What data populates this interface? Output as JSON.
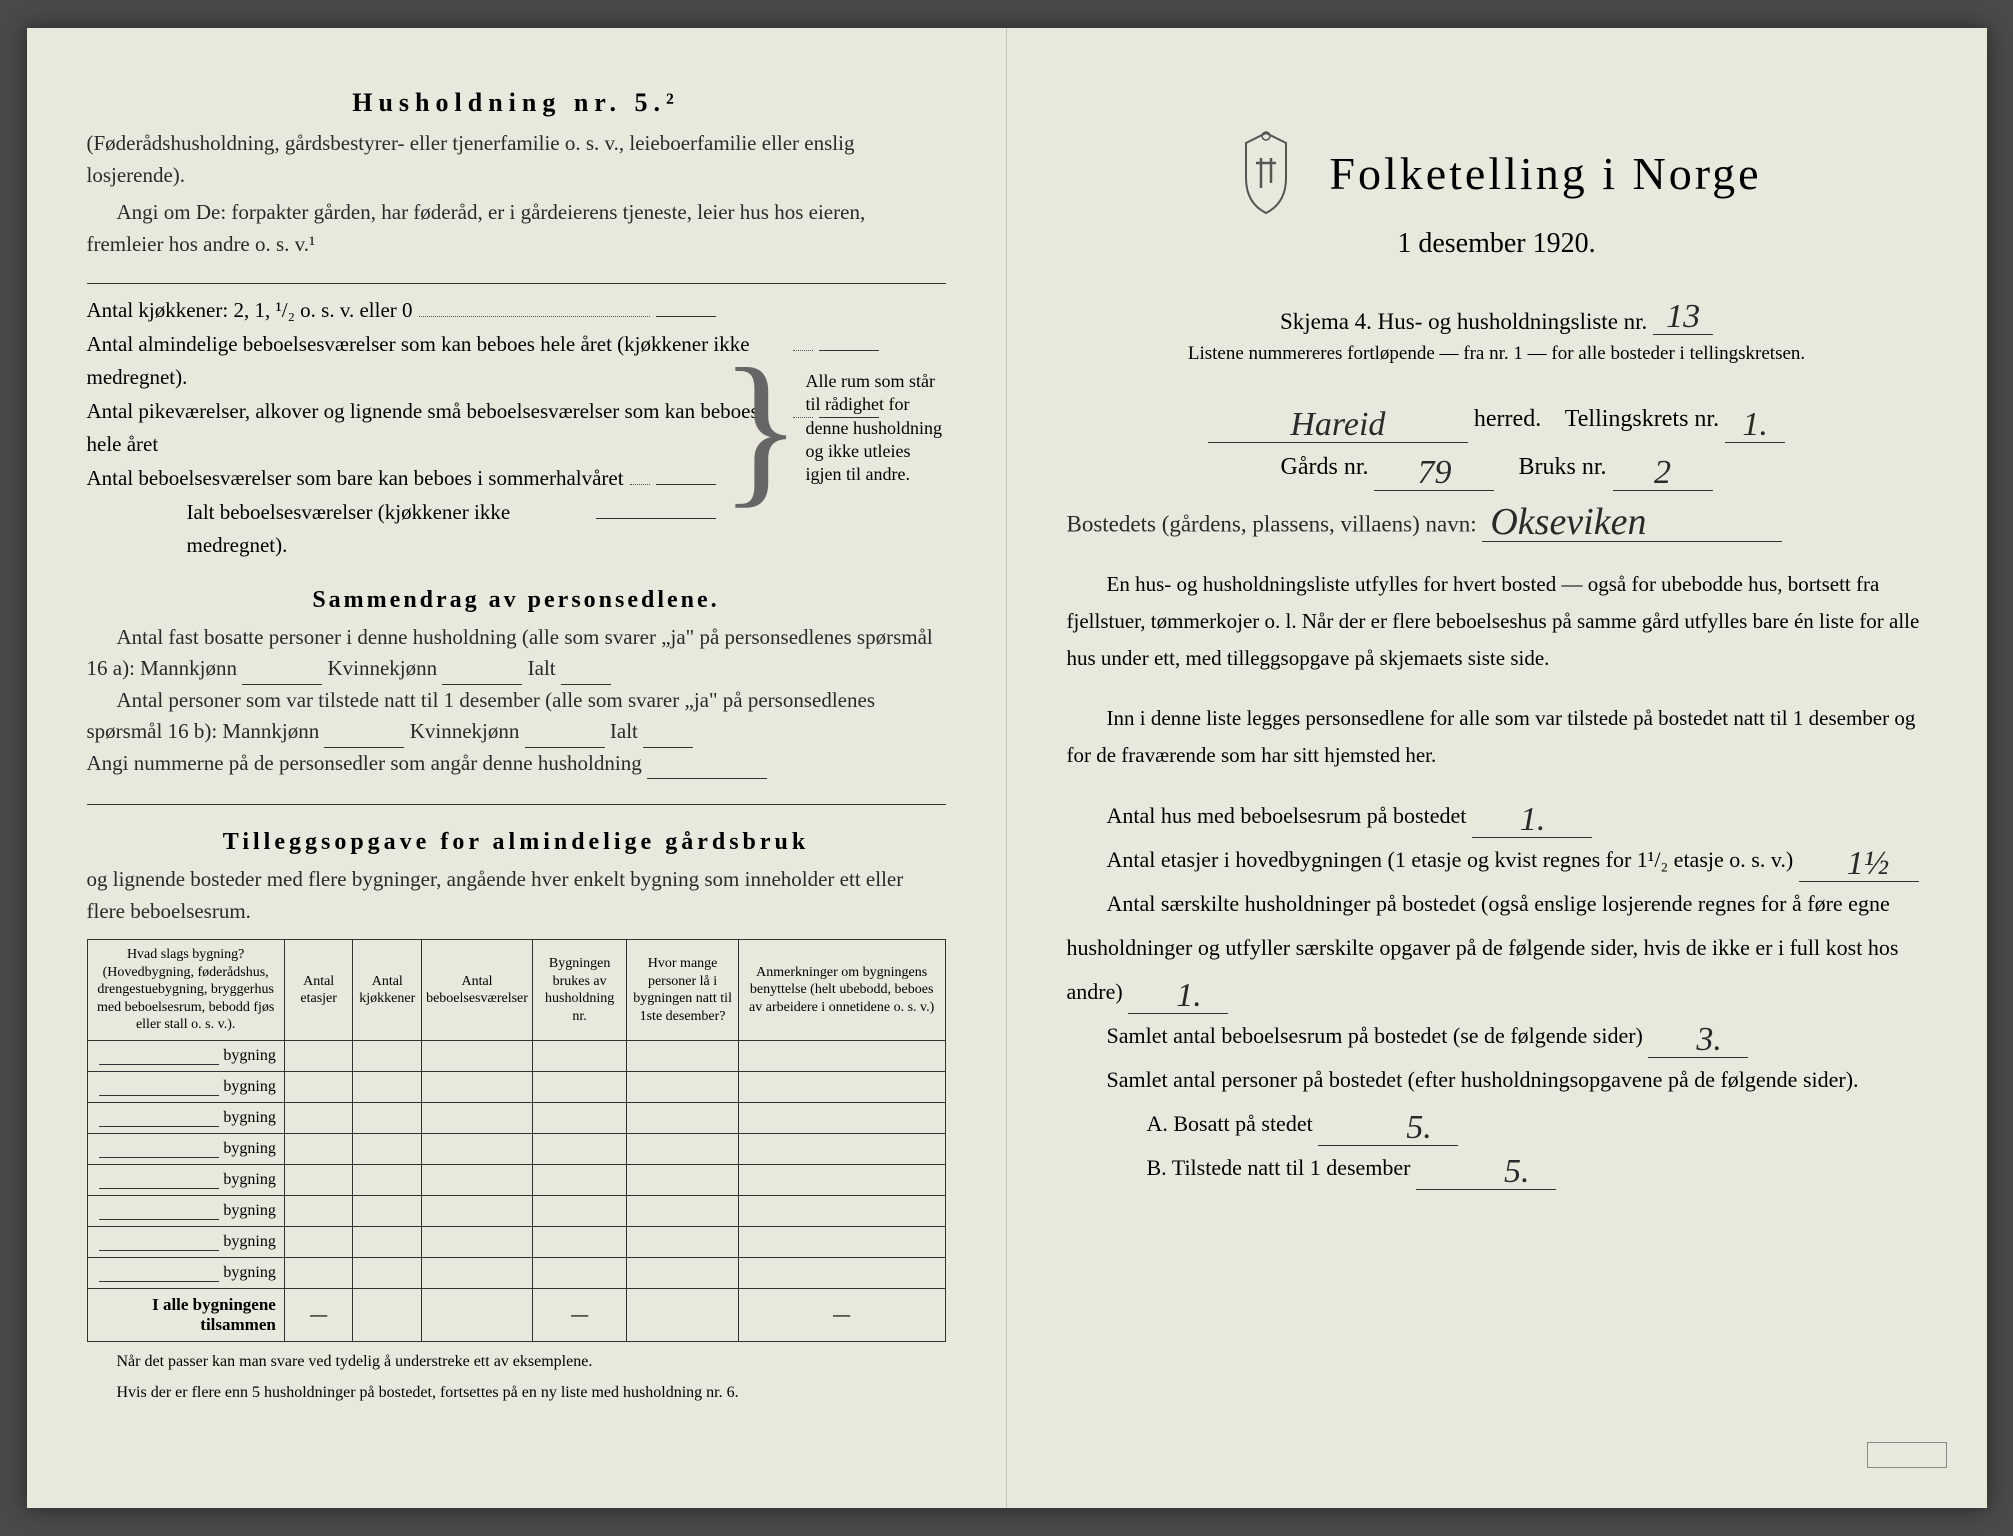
{
  "left": {
    "husholdning_title": "Husholdning nr. 5.²",
    "husholdning_sub": "(Føderådshusholdning, gårdsbestyrer- eller tjenerfamilie o. s. v., leieboerfamilie eller enslig losjerende).",
    "angi_text": "Angi om De: forpakter gården, har føderåd, er i gårdeierens tjeneste, leier hus hos eieren, fremleier hos andre o. s. v.¹",
    "kjokken_label": "Antal kjøkkener: 2, 1, ¹/₂ o. s. v. eller 0",
    "rooms": [
      "Antal almindelige beboelsesværelser som kan beboes hele året (kjøkkener ikke medregnet).",
      "Antal pikeværelser, alkover og lignende små beboelsesværelser som kan beboes hele året",
      "Antal beboelsesværelser som bare kan beboes i sommerhalvåret",
      "Ialt beboelsesværelser (kjøkkener ikke medregnet)."
    ],
    "bracket_note": "Alle rum som står til rådighet for denne husholdning og ikke utleies igjen til andre.",
    "sammendrag_title": "Sammendrag av personsedlene.",
    "sammendrag_1": "Antal fast bosatte personer i denne husholdning (alle som svarer „ja\" på personsedlenes spørsmål 16 a): Mannkjønn",
    "kvinne_label": "Kvinnekjønn",
    "ialt_label": "Ialt",
    "sammendrag_2": "Antal personer som var tilstede natt til 1 desember (alle som svarer „ja\" på personsedlenes spørsmål 16 b): Mannkjønn",
    "angi_nummer": "Angi nummerne på de personsedler som angår denne husholdning",
    "tillegg_title": "Tilleggsopgave for almindelige gårdsbruk",
    "tillegg_sub": "og lignende bosteder med flere bygninger, angående hver enkelt bygning som inneholder ett eller flere beboelsesrum.",
    "table": {
      "headers": [
        "Hvad slags bygning?\n(Hovedbygning, føderådshus, drengestuebygning, bryggerhus med beboelsesrum, bebodd fjøs eller stall o. s. v.).",
        "Antal etasjer",
        "Antal kjøkkener",
        "Antal beboelsesværelser",
        "Bygningen brukes av husholdning nr.",
        "Hvor mange personer lå i bygningen natt til 1ste desember?",
        "Anmerkninger om bygningens benyttelse (helt ubebodd, beboes av arbeidere i onnetidene o. s. v.)"
      ],
      "row_label": "bygning",
      "row_count": 8,
      "footer": "I alle bygningene tilsammen"
    },
    "footnote1": "Når det passer kan man svare ved tydelig å understreke ett av eksemplene.",
    "footnote2": "Hvis der er flere enn 5 husholdninger på bostedet, fortsettes på en ny liste med husholdning nr. 6."
  },
  "right": {
    "main_title": "Folketelling i Norge",
    "subtitle": "1 desember 1920.",
    "skjema": "Skjema 4.   Hus- og husholdningsliste nr.",
    "liste_nr": "13",
    "instruction": "Listene nummereres fortløpende — fra nr. 1 — for alle bosteder i tellingskretsen.",
    "herred_value": "Hareid",
    "herred_label": "herred.",
    "krets_label": "Tellingskrets nr.",
    "krets_value": "1.",
    "gards_label": "Gårds nr.",
    "gards_value": "79",
    "bruks_label": "Bruks nr.",
    "bruks_value": "2",
    "bosted_label": "Bostedets (gårdens, plassens, villaens) navn:",
    "bosted_value": "Okseviken",
    "para1": "En hus- og husholdningsliste utfylles for hvert bosted — også for ubebodde hus, bortsett fra fjellstuer, tømmerkojer o. l. Når der er flere beboelseshus på samme gård utfylles bare én liste for alle hus under ett, med tilleggsopgave på skjemaets siste side.",
    "para2": "Inn i denne liste legges personsedlene for alle som var tilstede på bostedet natt til 1 desember og for de fraværende som har sitt hjemsted her.",
    "q1_label": "Antal hus med beboelsesrum på bostedet",
    "q1_value": "1.",
    "q2_label_a": "Antal etasjer i hovedbygningen (1 etasje og kvist regnes for 1¹/₂ etasje o. s. v.)",
    "q2_value": "1½",
    "q3_label": "Antal særskilte husholdninger på bostedet (også enslige losjerende regnes for å føre egne husholdninger og utfyller særskilte opgaver på de følgende sider, hvis de ikke er i full kost hos andre)",
    "q3_value": "1.",
    "q4_label": "Samlet antal beboelsesrum på bostedet (se de følgende sider)",
    "q4_value": "3.",
    "q5_label": "Samlet antal personer på bostedet (efter husholdningsopgavene på de følgende sider).",
    "qA_label": "A.  Bosatt på stedet",
    "qA_value": "5.",
    "qB_label": "B.  Tilstede natt til 1 desember",
    "qB_value": "5.",
    "stamp": ""
  },
  "colors": {
    "paper": "#e8e9dc",
    "ink": "#2a2a2a",
    "rule": "#333333"
  }
}
